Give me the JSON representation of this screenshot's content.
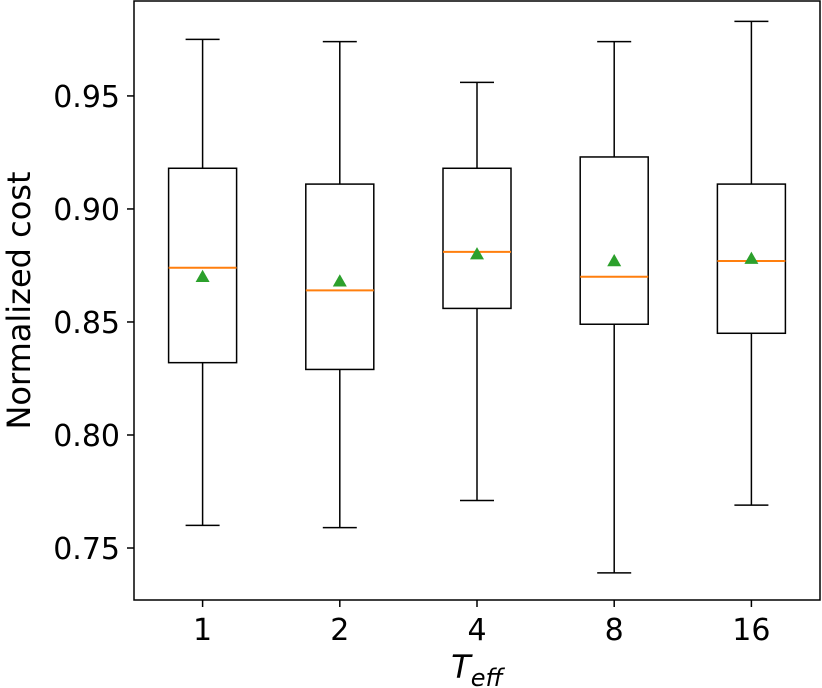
{
  "chart_data": {
    "type": "box",
    "title": "",
    "xlabel": "T_eff",
    "xlabel_main": "T",
    "xlabel_sub": "eff",
    "ylabel": "Normalized cost",
    "ylim": [
      0.727,
      0.992
    ],
    "yticks": [
      "0.75",
      "0.80",
      "0.85",
      "0.90",
      "0.95"
    ],
    "grid": false,
    "categories": [
      "1",
      "2",
      "4",
      "8",
      "16"
    ],
    "boxes": [
      {
        "category": "1",
        "whisker_low": 0.76,
        "q1": 0.832,
        "median": 0.874,
        "q3": 0.918,
        "whisker_high": 0.975,
        "mean": 0.87
      },
      {
        "category": "2",
        "whisker_low": 0.759,
        "q1": 0.829,
        "median": 0.864,
        "q3": 0.911,
        "whisker_high": 0.974,
        "mean": 0.868
      },
      {
        "category": "4",
        "whisker_low": 0.771,
        "q1": 0.856,
        "median": 0.881,
        "q3": 0.918,
        "whisker_high": 0.956,
        "mean": 0.88
      },
      {
        "category": "8",
        "whisker_low": 0.739,
        "q1": 0.849,
        "median": 0.87,
        "q3": 0.923,
        "whisker_high": 0.974,
        "mean": 0.877
      },
      {
        "category": "16",
        "whisker_low": 0.769,
        "q1": 0.845,
        "median": 0.877,
        "q3": 0.911,
        "whisker_high": 0.983,
        "mean": 0.878
      }
    ],
    "colors": {
      "box": "#000000",
      "median": "#ff7f0e",
      "mean": "#2ca02c"
    }
  }
}
